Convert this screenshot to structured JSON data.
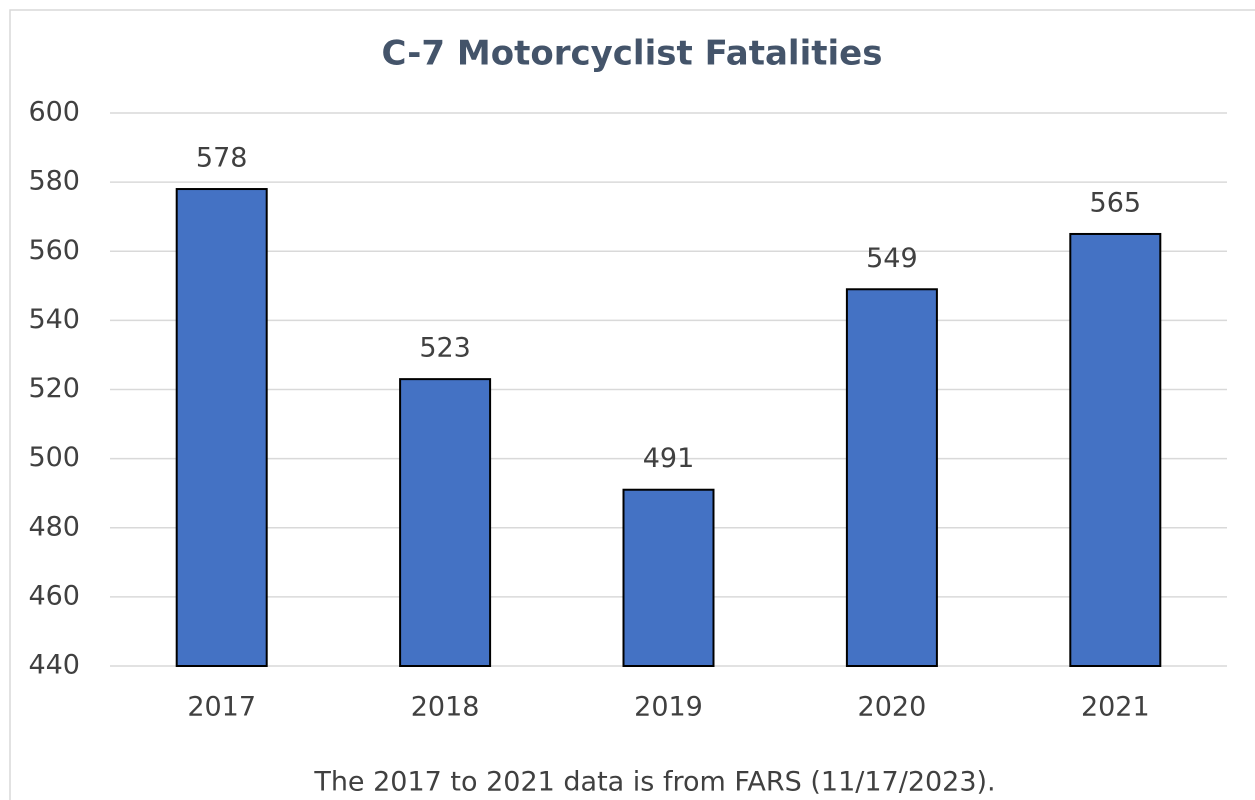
{
  "chart_data": {
    "type": "bar",
    "title": "C-7 Motorcyclist Fatalities",
    "categories": [
      "2017",
      "2018",
      "2019",
      "2020",
      "2021"
    ],
    "values": [
      578,
      523,
      491,
      549,
      565
    ],
    "color": "#4472c4",
    "ylim": [
      440,
      600
    ],
    "yticks": [
      440,
      460,
      480,
      500,
      520,
      540,
      560,
      580,
      600
    ],
    "grid": true,
    "note": "The 2017 to 2021 data is from FARS (11/17/2023)."
  }
}
